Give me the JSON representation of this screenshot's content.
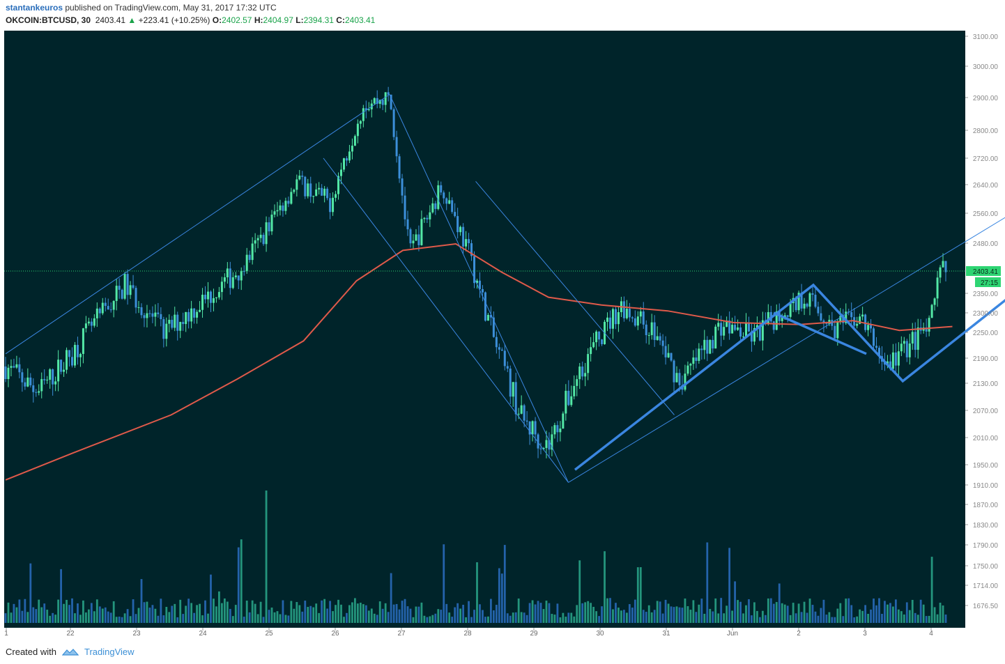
{
  "header": {
    "author": "stantankeuros",
    "published": "published on TradingView.com, May 31, 2017 17:32 UTC",
    "symbol": "OKCOIN:BTCUSD, 30",
    "last": "2403.41",
    "change": "+223.41 (+10.25%)",
    "o_label": "O:",
    "o": "2402.57",
    "h_label": "H:",
    "h": "2404.97",
    "l_label": "L:",
    "l": "2394.31",
    "c_label": "C:",
    "c": "2403.41"
  },
  "footer": {
    "created": "Created with",
    "brand": "TradingView"
  },
  "colors": {
    "background": "#00242a",
    "candle_up": "#53e8a6",
    "candle_down": "#3c8fd9",
    "ma": "#e05a4a",
    "trend": "#3a86e0",
    "last_tag": "#2ed573"
  },
  "chart_data": {
    "type": "candlestick",
    "price_labels": [
      "3100.00",
      "3000.00",
      "2900.00",
      "2800.00",
      "2720.00",
      "2640.00",
      "2560.00",
      "2480.00",
      "2403.41",
      "2350.00",
      "2300.00",
      "2250.00",
      "2190.00",
      "2130.00",
      "2070.00",
      "2010.00",
      "1950.00",
      "1910.00",
      "1870.00",
      "1830.00",
      "1790.00",
      "1750.00",
      "1714.00",
      "1676.50"
    ],
    "countdown": "27:15",
    "x_ticks": [
      "1",
      "22",
      "23",
      "24",
      "25",
      "26",
      "27",
      "28",
      "29",
      "30",
      "31",
      "Jun",
      "2",
      "3",
      "4"
    ],
    "key_points": [
      {
        "x": 0.0,
        "y": 2170
      },
      {
        "x": 0.5,
        "y": 2110
      },
      {
        "x": 1.0,
        "y": 2200
      },
      {
        "x": 1.8,
        "y": 2370
      },
      {
        "x": 2.4,
        "y": 2250
      },
      {
        "x": 3.2,
        "y": 2360
      },
      {
        "x": 3.6,
        "y": 2420
      },
      {
        "x": 4.4,
        "y": 2650
      },
      {
        "x": 4.9,
        "y": 2590
      },
      {
        "x": 5.4,
        "y": 2880
      },
      {
        "x": 5.8,
        "y": 2900
      },
      {
        "x": 6.1,
        "y": 2450
      },
      {
        "x": 6.6,
        "y": 2640
      },
      {
        "x": 7.0,
        "y": 2450
      },
      {
        "x": 7.4,
        "y": 2220
      },
      {
        "x": 7.8,
        "y": 2050
      },
      {
        "x": 8.2,
        "y": 1990
      },
      {
        "x": 8.7,
        "y": 2170
      },
      {
        "x": 9.3,
        "y": 2320
      },
      {
        "x": 9.8,
        "y": 2250
      },
      {
        "x": 10.2,
        "y": 2130
      },
      {
        "x": 10.8,
        "y": 2270
      },
      {
        "x": 11.3,
        "y": 2240
      },
      {
        "x": 11.7,
        "y": 2300
      },
      {
        "x": 12.1,
        "y": 2345
      },
      {
        "x": 12.5,
        "y": 2260
      },
      {
        "x": 12.9,
        "y": 2290
      },
      {
        "x": 13.3,
        "y": 2170
      },
      {
        "x": 13.7,
        "y": 2230
      },
      {
        "x": 13.95,
        "y": 2260
      },
      {
        "x": 14.1,
        "y": 2400
      },
      {
        "x": 14.2,
        "y": 2403
      }
    ],
    "ma_points": [
      {
        "x": 0.0,
        "y": 1920
      },
      {
        "x": 1.0,
        "y": 1975
      },
      {
        "x": 2.5,
        "y": 2060
      },
      {
        "x": 3.5,
        "y": 2140
      },
      {
        "x": 4.5,
        "y": 2230
      },
      {
        "x": 5.3,
        "y": 2380
      },
      {
        "x": 6.0,
        "y": 2460
      },
      {
        "x": 6.8,
        "y": 2478
      },
      {
        "x": 7.5,
        "y": 2400
      },
      {
        "x": 8.2,
        "y": 2340
      },
      {
        "x": 9.0,
        "y": 2320
      },
      {
        "x": 10.0,
        "y": 2305
      },
      {
        "x": 11.0,
        "y": 2275
      },
      {
        "x": 12.0,
        "y": 2270
      },
      {
        "x": 12.8,
        "y": 2280
      },
      {
        "x": 13.5,
        "y": 2255
      },
      {
        "x": 14.3,
        "y": 2265
      }
    ],
    "trend_lines_thin": [
      [
        {
          "x": 0.0,
          "y": 2200
        },
        {
          "x": 5.8,
          "y": 2910
        }
      ],
      [
        {
          "x": 5.8,
          "y": 2910
        },
        {
          "x": 8.5,
          "y": 1915
        }
      ],
      [
        {
          "x": 4.8,
          "y": 2720
        },
        {
          "x": 8.5,
          "y": 1915
        }
      ],
      [
        {
          "x": 7.1,
          "y": 2650
        },
        {
          "x": 10.1,
          "y": 2060
        }
      ],
      [
        {
          "x": 8.5,
          "y": 1915
        },
        {
          "x": 19.5,
          "y": 3085
        }
      ]
    ],
    "trend_lines_thick": [
      [
        {
          "x": 8.6,
          "y": 1940
        },
        {
          "x": 12.2,
          "y": 2370
        },
        {
          "x": 13.55,
          "y": 2135
        },
        {
          "x": 16.9,
          "y": 2580
        }
      ],
      [
        {
          "x": 11.6,
          "y": 2300
        },
        {
          "x": 13.0,
          "y": 2200
        }
      ]
    ]
  }
}
